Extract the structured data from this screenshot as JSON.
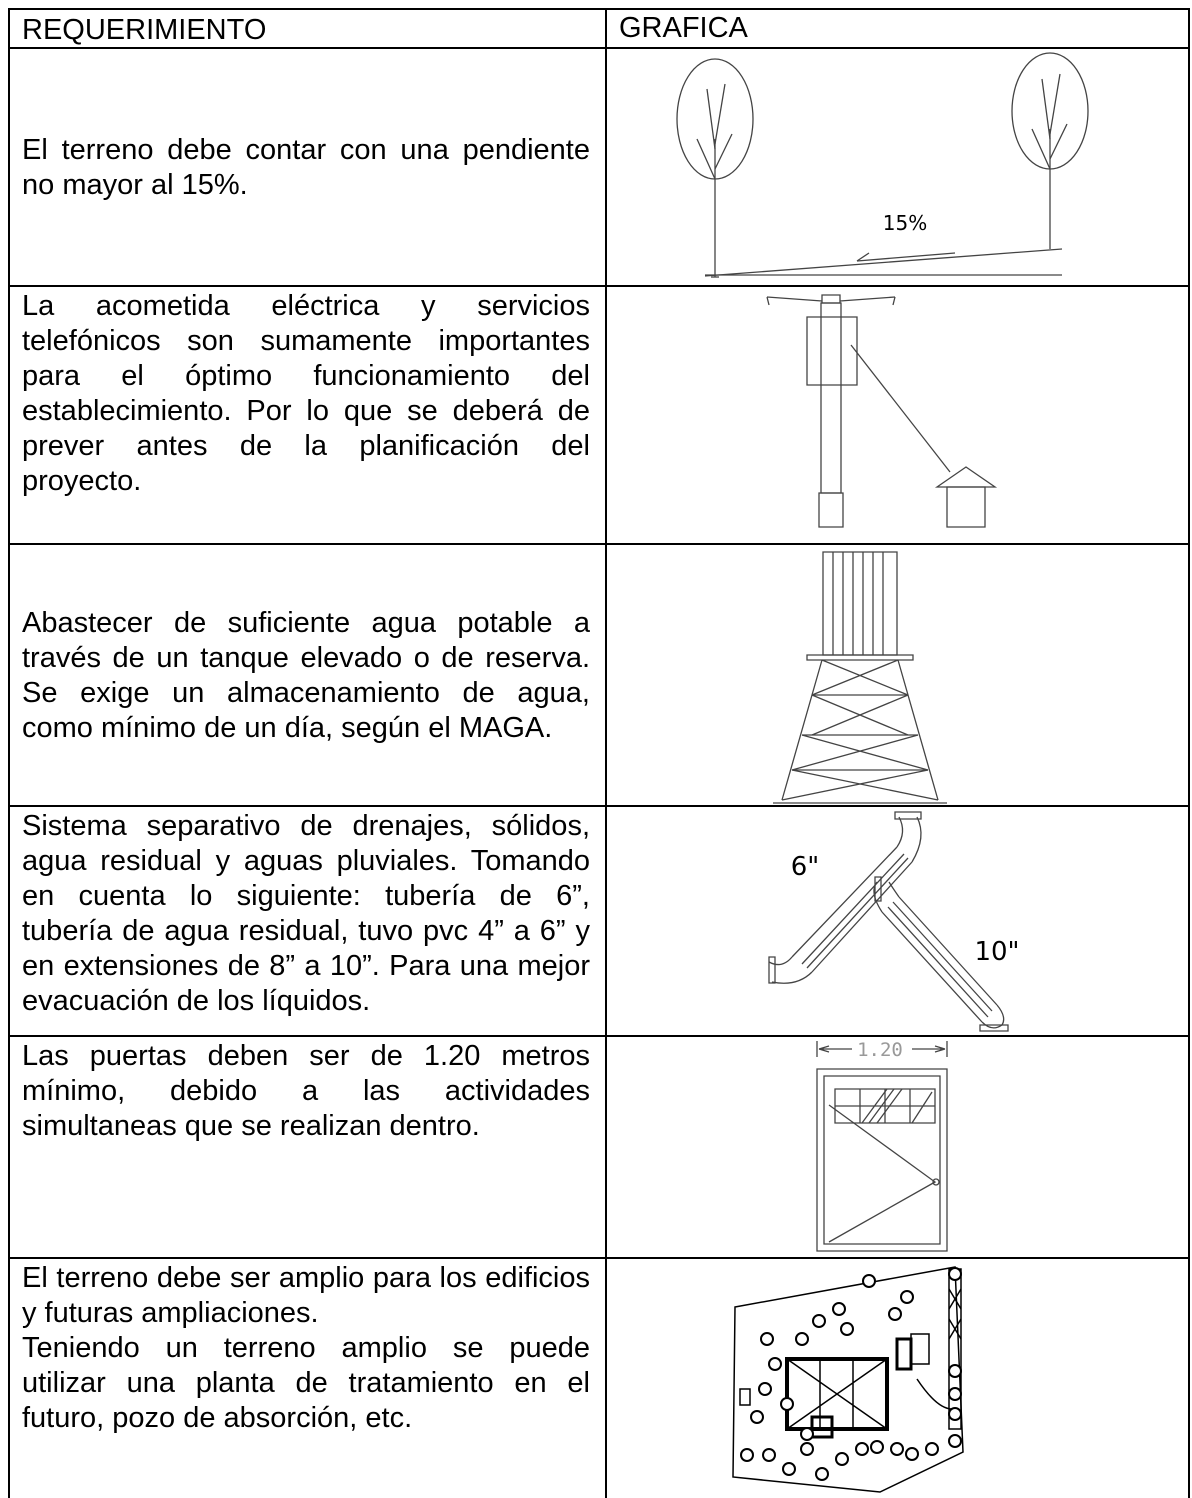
{
  "table": {
    "header": [
      "REQUERIMIENTO",
      "GRAFICA"
    ],
    "rows": [
      {
        "text": [
          "El terreno debe contar con una pendiente no mayor al 15%."
        ],
        "labels": [
          "15%"
        ]
      },
      {
        "text": [
          "La acometida eléctrica y servicios telefónicos son sumamente importantes para el óptimo funcionamiento del establecimiento. Por lo que se deberá de prever antes de la planificación del proyecto."
        ],
        "labels": []
      },
      {
        "text": [
          "Abastecer de suficiente agua potable a través de un tanque elevado o de reserva. Se exige un almacenamiento de agua, como mínimo de un día, según el MAGA."
        ],
        "labels": []
      },
      {
        "text": [
          "Sistema separativo de drenajes, sólidos, agua residual y aguas pluviales. Tomando en cuenta lo siguiente: tubería de 6”, tubería de agua residual, tuvo pvc 4” a 6” y en extensiones de 8” a 10”. Para una mejor evacuación de los líquidos."
        ],
        "labels": [
          "6\"",
          "10\""
        ]
      },
      {
        "text": [
          "Las puertas deben ser de 1.20 metros mínimo, debido a las actividades simultaneas que se realizan dentro."
        ],
        "labels": [
          "1.20"
        ]
      },
      {
        "text": [
          "El terreno debe ser amplio para los edificios y futuras ampliaciones.",
          "Teniendo un terreno amplio se puede utilizar una planta de tratamiento en el futuro, pozo de absorción, etc."
        ],
        "labels": []
      }
    ]
  }
}
